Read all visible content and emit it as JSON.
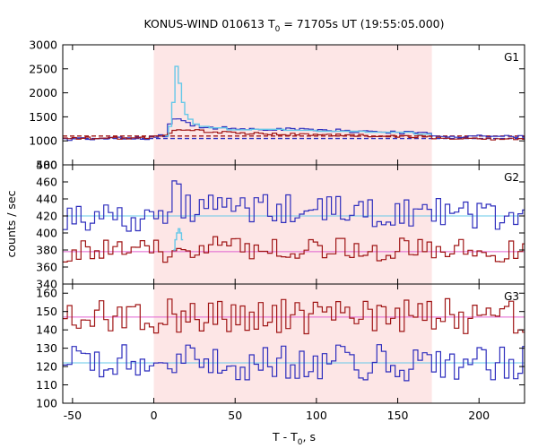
{
  "chart_data": {
    "type": "line",
    "title": {
      "prefix": "KONUS-WIND 010613 T",
      "sub": "0",
      "suffix": " = 71705s UT (19:55:05.000)"
    },
    "xlabel": {
      "prefix": "T - T",
      "sub": "0",
      "suffix": ", s"
    },
    "ylabel": "counts / sec",
    "xlim": [
      -56,
      228
    ],
    "xticks": [
      -50,
      0,
      50,
      100,
      150,
      200
    ],
    "highlight_interval": [
      0,
      171
    ],
    "colors": {
      "blue_series": "#2e2ebd",
      "red_series": "#a01616",
      "blue_background": "#66c8e8",
      "red_background": "#e060d0",
      "highlight": "#fde6e6",
      "light_curve_overlay": "#66c8e8"
    },
    "panels": [
      {
        "name": "G1",
        "ylim": [
          500,
          3000
        ],
        "yticks": [
          500,
          1000,
          1500,
          2000,
          2500,
          3000
        ],
        "overlay": {
          "x": [
            7,
            9,
            11,
            13,
            15,
            17,
            19,
            21,
            24,
            28,
            34,
            45,
            60,
            80,
            100,
            130,
            160,
            171
          ],
          "y": [
            1100,
            1300,
            1800,
            2550,
            2200,
            1800,
            1550,
            1450,
            1350,
            1300,
            1270,
            1230,
            1240,
            1220,
            1200,
            1180,
            1140,
            1120
          ]
        },
        "series": [
          {
            "color_key": "blue_series",
            "segments": [
              {
                "x": [
                  -56,
                  -10,
                  -2,
                  0,
                  4,
                  7
                ],
                "y": [
                  1040,
                  1050,
                  1060,
                  1080,
                  1100,
                  1120
                ]
              },
              {
                "x": [
                  7,
                  9,
                  11,
                  13,
                  15,
                  17,
                  19,
                  21,
                  24,
                  28,
                  34,
                  45,
                  60,
                  80,
                  100,
                  130,
                  160,
                  171
                ],
                "y": [
                  1140,
                  1260,
                  1420,
                  1470,
                  1500,
                  1420,
                  1380,
                  1360,
                  1330,
                  1300,
                  1280,
                  1270,
                  1260,
                  1240,
                  1220,
                  1200,
                  1170,
                  1150
                ]
              },
              {
                "x": [
                  171,
                  190,
                  210,
                  228
                ],
                "y": [
                  1120,
                  1100,
                  1090,
                  1080
                ]
              }
            ],
            "noise": 35,
            "bin": 2.8
          },
          {
            "color_key": "red_series",
            "segments": [
              {
                "x": [
                  -56,
                  -10,
                  -2,
                  0,
                  4,
                  7
                ],
                "y": [
                  1050,
                  1060,
                  1070,
                  1080,
                  1090,
                  1100
                ]
              },
              {
                "x": [
                  7,
                  9,
                  11,
                  13,
                  15,
                  17,
                  19,
                  21,
                  24,
                  28,
                  34,
                  45,
                  60,
                  80,
                  100,
                  130,
                  160,
                  171
                ],
                "y": [
                  1110,
                  1140,
                  1180,
                  1210,
                  1230,
                  1240,
                  1250,
                  1240,
                  1230,
                  1210,
                  1190,
                  1170,
                  1150,
                  1140,
                  1130,
                  1110,
                  1090,
                  1080
                ]
              },
              {
                "x": [
                  171,
                  190,
                  210,
                  228
                ],
                "y": [
                  1060,
                  1050,
                  1040,
                  1030
                ]
              }
            ],
            "noise": 25,
            "bin": 2.8
          }
        ],
        "background_levels": [
          {
            "value": 1050,
            "color_key": "blue_series"
          },
          {
            "value": 1100,
            "color_key": "red_series"
          }
        ]
      },
      {
        "name": "G2",
        "ylim": [
          340,
          480
        ],
        "yticks": [
          340,
          360,
          380,
          400,
          420,
          440,
          460,
          480
        ],
        "overlay": {
          "x": [
            12,
            13,
            14,
            15,
            16,
            17,
            18
          ],
          "y": [
            380,
            392,
            400,
            405,
            400,
            392,
            380
          ]
        },
        "series": [
          {
            "color_key": "blue_series",
            "segments": [
              {
                "x": [
                  -56,
                  10,
                  12,
                  14,
                  16,
                  228
                ],
                "y": [
                  420,
                  420,
                  440,
                  470,
                  430,
                  420
                ]
              }
            ],
            "noise": 18,
            "bin": 2.8
          },
          {
            "color_key": "red_series",
            "segments": [
              {
                "x": [
                  -56,
                  10,
                  12,
                  14,
                  16,
                  228
                ],
                "y": [
                  378,
                  378,
                  385,
                  395,
                  385,
                  378
                ]
              }
            ],
            "noise": 14,
            "bin": 2.8
          }
        ],
        "background_levels": [
          {
            "value": 420,
            "color_key": "blue_background"
          },
          {
            "value": 378,
            "color_key": "red_background"
          }
        ]
      },
      {
        "name": "G3",
        "ylim": [
          100,
          165
        ],
        "yticks": [
          100,
          110,
          120,
          130,
          140,
          150,
          160
        ],
        "series": [
          {
            "color_key": "blue_series",
            "segments": [
              {
                "x": [
                  -56,
                  228
                ],
                "y": [
                  122,
                  122
                ]
              }
            ],
            "noise": 10,
            "bin": 2.8
          },
          {
            "color_key": "red_series",
            "segments": [
              {
                "x": [
                  -56,
                  228
                ],
                "y": [
                  147,
                  147
                ]
              }
            ],
            "noise": 10,
            "bin": 2.8
          }
        ],
        "background_levels": [
          {
            "value": 122,
            "color_key": "blue_background"
          },
          {
            "value": 147,
            "color_key": "red_background"
          }
        ]
      }
    ]
  }
}
